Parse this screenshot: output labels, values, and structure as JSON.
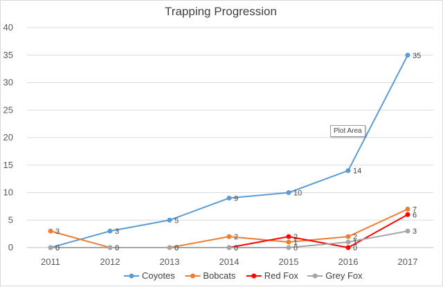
{
  "chart_data": {
    "type": "line",
    "title": "Trapping Progression",
    "categories": [
      "2011",
      "2012",
      "2013",
      "2014",
      "2015",
      "2016",
      "2017"
    ],
    "ylim": [
      0,
      40
    ],
    "yticks": [
      0,
      5,
      10,
      15,
      20,
      25,
      30,
      35,
      40
    ],
    "grid": true,
    "legend_position": "bottom",
    "series": [
      {
        "name": "Coyotes",
        "color": "#5b9bd5",
        "values": [
          0,
          3,
          5,
          9,
          10,
          14,
          35
        ]
      },
      {
        "name": "Bobcats",
        "color": "#ed7d31",
        "values": [
          3,
          0,
          0,
          2,
          1,
          2,
          7
        ]
      },
      {
        "name": "Red Fox",
        "color": "#ff0000",
        "values": [
          null,
          null,
          null,
          0,
          2,
          0,
          6
        ]
      },
      {
        "name": "Grey Fox",
        "color": "#a5a5a5",
        "values": [
          0,
          0,
          0,
          0,
          0,
          1,
          3
        ]
      }
    ]
  },
  "tooltip": {
    "label": "Plot Area"
  }
}
